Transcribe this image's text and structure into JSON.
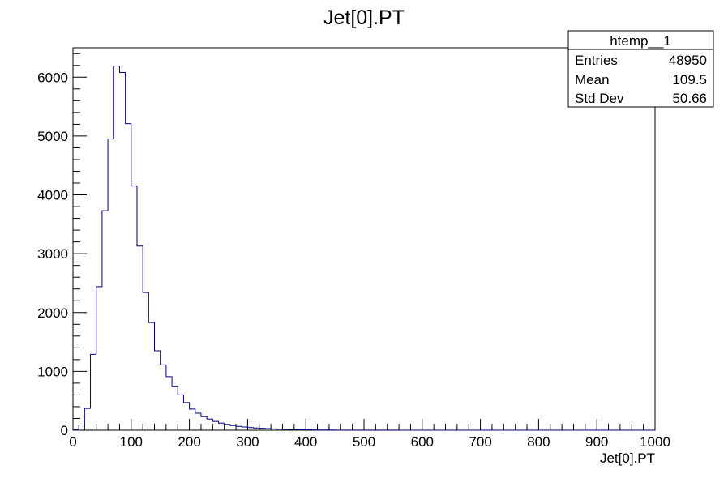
{
  "chart_data": {
    "type": "histogram",
    "title": "Jet[0].PT",
    "xlabel": "Jet[0].PT",
    "ylabel": "",
    "xlim": [
      0,
      1000
    ],
    "ylim": [
      0,
      6500
    ],
    "bin_width": 10,
    "x_ticks": [
      "0",
      "100",
      "200",
      "300",
      "400",
      "500",
      "600",
      "700",
      "800",
      "900",
      "1000"
    ],
    "y_ticks": [
      "0",
      "1000",
      "2000",
      "3000",
      "4000",
      "5000",
      "6000"
    ],
    "series": [
      {
        "values": [
          15,
          90,
          370,
          1290,
          2440,
          3730,
          4950,
          6190,
          6080,
          5210,
          4150,
          3130,
          2340,
          1830,
          1350,
          1110,
          910,
          740,
          600,
          470,
          360,
          290,
          230,
          190,
          150,
          120,
          100,
          80,
          65,
          55,
          45,
          38,
          32,
          27,
          22,
          18,
          15,
          12,
          10,
          8,
          6,
          5,
          4,
          3,
          3,
          2,
          2,
          2,
          1,
          1,
          1,
          1,
          1,
          1,
          1,
          1,
          0,
          0,
          0,
          0,
          0,
          0,
          0,
          0,
          0,
          0,
          0,
          0,
          0,
          0,
          0,
          0,
          0,
          0,
          0,
          0,
          0,
          0,
          0,
          0,
          0,
          0,
          0,
          0,
          0,
          0,
          0,
          0,
          0,
          0,
          0,
          0,
          0,
          0,
          0,
          0,
          0,
          0,
          0,
          0
        ],
        "color": "#000080"
      }
    ],
    "grid": false,
    "stats_box": {
      "name": "htemp__1",
      "rows": [
        {
          "label": "Entries",
          "value": "48950"
        },
        {
          "label": "Mean",
          "value": "109.5"
        },
        {
          "label": "Std Dev",
          "value": "50.66"
        }
      ]
    }
  }
}
